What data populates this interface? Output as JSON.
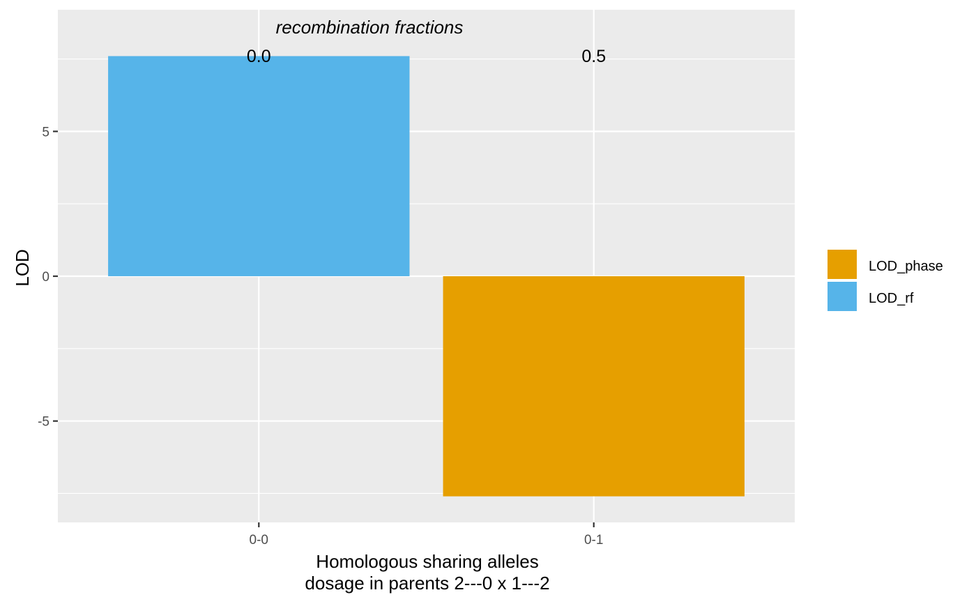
{
  "chart_data": {
    "type": "bar",
    "categories": [
      "0-0",
      "0-1"
    ],
    "series": [
      {
        "name": "LOD_rf",
        "values": [
          7.6,
          0
        ]
      },
      {
        "name": "LOD_phase",
        "values": [
          0,
          -7.6
        ]
      }
    ],
    "top_axis": {
      "title": "recombination fractions",
      "labels": [
        "0.0",
        "0.5"
      ]
    },
    "xlabel_line1": "Homologous sharing alleles",
    "xlabel_line2": "dosage in parents  2---0  x  1---2",
    "ylabel": "LOD",
    "ylim": [
      -8.5,
      9.2
    ],
    "yticks": [
      -5,
      0,
      5
    ],
    "ytick_labels": [
      "-5",
      "0",
      "5"
    ],
    "grid": true,
    "legend": {
      "placement": "right",
      "entries": [
        {
          "name": "LOD_phase",
          "color": "#E69F00"
        },
        {
          "name": "LOD_rf",
          "color": "#56B4E9"
        }
      ]
    },
    "colors": {
      "panel": "#EBEBEB",
      "grid": "#FFFFFF",
      "LOD_rf": "#56B4E9",
      "LOD_phase": "#E69F00"
    }
  }
}
